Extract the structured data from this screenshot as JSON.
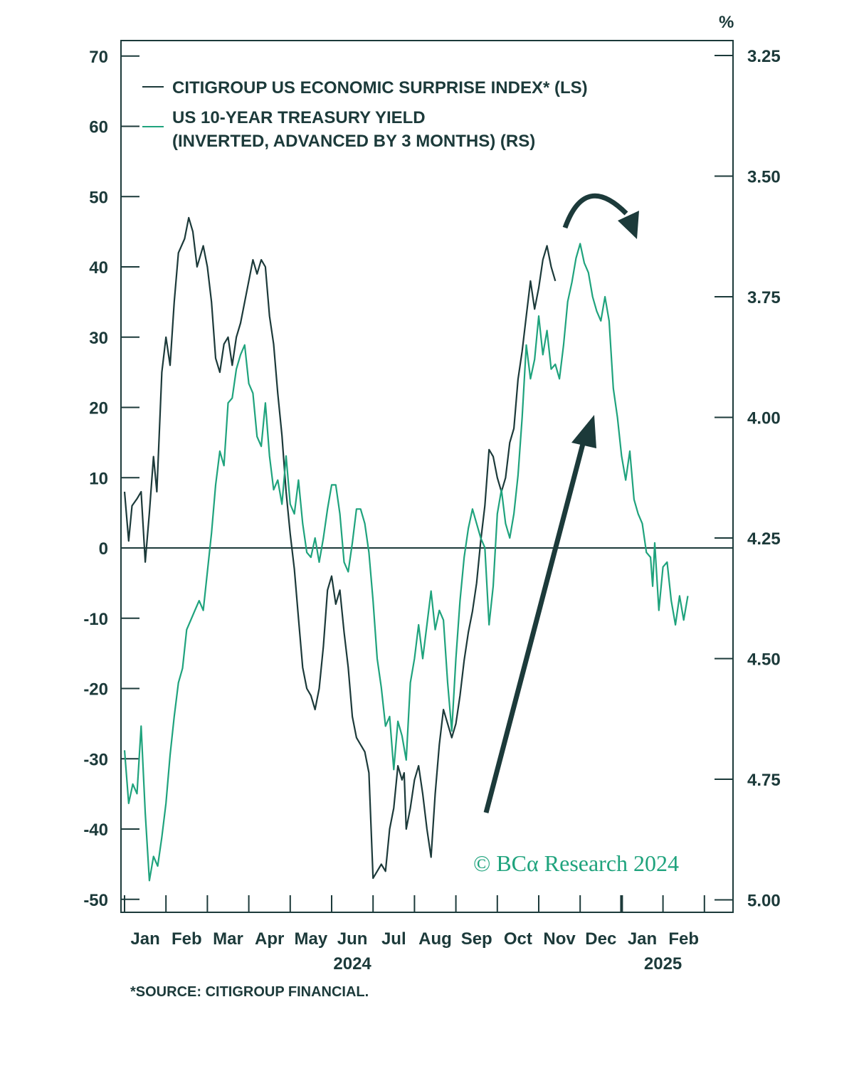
{
  "chart_data": {
    "type": "line",
    "unit_label": "%",
    "legend": [
      {
        "label": "CITIGROUP US ECONOMIC SURPRISE INDEX* (LS)",
        "color": "#1c3a3a"
      },
      {
        "label_line1": "US 10-YEAR TREASURY YIELD",
        "label_line2": "(INVERTED, ADVANCED BY 3 MONTHS) (RS)",
        "color": "#1fa37d"
      }
    ],
    "left_axis": {
      "ylim": [
        -50,
        70
      ],
      "ticks": [
        70,
        60,
        50,
        40,
        30,
        20,
        10,
        0,
        -10,
        -20,
        -30,
        -40,
        -50
      ]
    },
    "right_axis": {
      "ylim": [
        3.25,
        5.0
      ],
      "inverted": true,
      "ticks": [
        "3.25",
        "3.50",
        "3.75",
        "4.00",
        "4.25",
        "4.50",
        "4.75",
        "5.00"
      ]
    },
    "x_axis": {
      "months": [
        "Jan",
        "Feb",
        "Mar",
        "Apr",
        "May",
        "Jun",
        "Jul",
        "Aug",
        "Sep",
        "Oct",
        "Nov",
        "Dec",
        "Jan",
        "Feb"
      ],
      "year_labels": [
        {
          "text": "2024",
          "month_index": 5.5
        },
        {
          "text": "2025",
          "month_index": 13
        }
      ],
      "range": [
        0,
        14
      ]
    },
    "series": [
      {
        "name": "CITIGROUP US ECONOMIC SURPRISE INDEX* (LS)",
        "color": "#1c3a3a",
        "axis": "left",
        "points": [
          [
            0.0,
            8
          ],
          [
            0.1,
            1
          ],
          [
            0.18,
            6
          ],
          [
            0.3,
            7
          ],
          [
            0.4,
            8
          ],
          [
            0.5,
            -2
          ],
          [
            0.6,
            5
          ],
          [
            0.7,
            13
          ],
          [
            0.78,
            8
          ],
          [
            0.9,
            25
          ],
          [
            1.0,
            30
          ],
          [
            1.1,
            26
          ],
          [
            1.2,
            35
          ],
          [
            1.3,
            42
          ],
          [
            1.45,
            44
          ],
          [
            1.55,
            47
          ],
          [
            1.65,
            45
          ],
          [
            1.75,
            40
          ],
          [
            1.9,
            43
          ],
          [
            2.0,
            40
          ],
          [
            2.1,
            35
          ],
          [
            2.2,
            27
          ],
          [
            2.3,
            25
          ],
          [
            2.4,
            29
          ],
          [
            2.5,
            30
          ],
          [
            2.6,
            26
          ],
          [
            2.7,
            30
          ],
          [
            2.8,
            32
          ],
          [
            2.9,
            35
          ],
          [
            3.0,
            38
          ],
          [
            3.1,
            41
          ],
          [
            3.2,
            39
          ],
          [
            3.3,
            41
          ],
          [
            3.4,
            40
          ],
          [
            3.5,
            33
          ],
          [
            3.6,
            29
          ],
          [
            3.7,
            22
          ],
          [
            3.8,
            16
          ],
          [
            3.9,
            8
          ],
          [
            4.0,
            2
          ],
          [
            4.1,
            -3
          ],
          [
            4.2,
            -10
          ],
          [
            4.3,
            -17
          ],
          [
            4.4,
            -20
          ],
          [
            4.5,
            -21
          ],
          [
            4.6,
            -23
          ],
          [
            4.7,
            -20
          ],
          [
            4.8,
            -14
          ],
          [
            4.9,
            -6
          ],
          [
            5.0,
            -4
          ],
          [
            5.1,
            -8
          ],
          [
            5.2,
            -6
          ],
          [
            5.3,
            -12
          ],
          [
            5.4,
            -17
          ],
          [
            5.5,
            -24
          ],
          [
            5.6,
            -27
          ],
          [
            5.7,
            -28
          ],
          [
            5.8,
            -29
          ],
          [
            5.9,
            -32
          ],
          [
            6.0,
            -47
          ],
          [
            6.1,
            -46
          ],
          [
            6.2,
            -45
          ],
          [
            6.3,
            -46
          ],
          [
            6.4,
            -40
          ],
          [
            6.5,
            -37
          ],
          [
            6.6,
            -31
          ],
          [
            6.7,
            -33
          ],
          [
            6.75,
            -32
          ],
          [
            6.8,
            -40
          ],
          [
            6.9,
            -37
          ],
          [
            7.0,
            -33
          ],
          [
            7.1,
            -31
          ],
          [
            7.2,
            -35
          ],
          [
            7.3,
            -40
          ],
          [
            7.4,
            -44
          ],
          [
            7.5,
            -35
          ],
          [
            7.6,
            -28
          ],
          [
            7.7,
            -23
          ],
          [
            7.8,
            -25
          ],
          [
            7.9,
            -27
          ],
          [
            8.0,
            -25
          ],
          [
            8.1,
            -21
          ],
          [
            8.2,
            -16
          ],
          [
            8.3,
            -12
          ],
          [
            8.4,
            -9
          ],
          [
            8.5,
            -5
          ],
          [
            8.6,
            1
          ],
          [
            8.7,
            6
          ],
          [
            8.8,
            14
          ],
          [
            8.9,
            13
          ],
          [
            9.0,
            10
          ],
          [
            9.1,
            8
          ],
          [
            9.2,
            10
          ],
          [
            9.3,
            15
          ],
          [
            9.4,
            17
          ],
          [
            9.5,
            24
          ],
          [
            9.6,
            28
          ],
          [
            9.7,
            33
          ],
          [
            9.8,
            38
          ],
          [
            9.9,
            34
          ],
          [
            10.0,
            37
          ],
          [
            10.1,
            41
          ],
          [
            10.2,
            43
          ],
          [
            10.3,
            40
          ],
          [
            10.4,
            38
          ]
        ]
      },
      {
        "name": "US 10-YEAR TREASURY YIELD (INVERTED, ADVANCED BY 3 MONTHS) (RS)",
        "color": "#1fa37d",
        "axis": "right",
        "points": [
          [
            0.0,
            4.69
          ],
          [
            0.1,
            4.8
          ],
          [
            0.2,
            4.76
          ],
          [
            0.3,
            4.78
          ],
          [
            0.4,
            4.64
          ],
          [
            0.5,
            4.82
          ],
          [
            0.6,
            4.96
          ],
          [
            0.7,
            4.91
          ],
          [
            0.8,
            4.93
          ],
          [
            0.9,
            4.87
          ],
          [
            1.0,
            4.8
          ],
          [
            1.1,
            4.7
          ],
          [
            1.2,
            4.62
          ],
          [
            1.3,
            4.55
          ],
          [
            1.4,
            4.52
          ],
          [
            1.5,
            4.44
          ],
          [
            1.6,
            4.42
          ],
          [
            1.7,
            4.4
          ],
          [
            1.8,
            4.38
          ],
          [
            1.9,
            4.4
          ],
          [
            2.0,
            4.32
          ],
          [
            2.1,
            4.24
          ],
          [
            2.2,
            4.14
          ],
          [
            2.3,
            4.07
          ],
          [
            2.4,
            4.1
          ],
          [
            2.5,
            3.97
          ],
          [
            2.6,
            3.96
          ],
          [
            2.7,
            3.9
          ],
          [
            2.8,
            3.87
          ],
          [
            2.9,
            3.85
          ],
          [
            3.0,
            3.93
          ],
          [
            3.1,
            3.95
          ],
          [
            3.2,
            4.04
          ],
          [
            3.3,
            4.06
          ],
          [
            3.4,
            3.97
          ],
          [
            3.5,
            4.08
          ],
          [
            3.6,
            4.15
          ],
          [
            3.7,
            4.13
          ],
          [
            3.8,
            4.18
          ],
          [
            3.9,
            4.08
          ],
          [
            4.0,
            4.18
          ],
          [
            4.1,
            4.2
          ],
          [
            4.2,
            4.13
          ],
          [
            4.3,
            4.22
          ],
          [
            4.4,
            4.28
          ],
          [
            4.5,
            4.29
          ],
          [
            4.6,
            4.25
          ],
          [
            4.7,
            4.3
          ],
          [
            4.8,
            4.25
          ],
          [
            4.9,
            4.19
          ],
          [
            5.0,
            4.14
          ],
          [
            5.1,
            4.14
          ],
          [
            5.2,
            4.2
          ],
          [
            5.3,
            4.3
          ],
          [
            5.4,
            4.32
          ],
          [
            5.5,
            4.26
          ],
          [
            5.6,
            4.19
          ],
          [
            5.7,
            4.19
          ],
          [
            5.8,
            4.22
          ],
          [
            5.9,
            4.28
          ],
          [
            6.0,
            4.38
          ],
          [
            6.1,
            4.5
          ],
          [
            6.2,
            4.56
          ],
          [
            6.3,
            4.64
          ],
          [
            6.4,
            4.62
          ],
          [
            6.5,
            4.73
          ],
          [
            6.6,
            4.63
          ],
          [
            6.7,
            4.66
          ],
          [
            6.8,
            4.71
          ],
          [
            6.9,
            4.55
          ],
          [
            7.0,
            4.5
          ],
          [
            7.1,
            4.43
          ],
          [
            7.2,
            4.5
          ],
          [
            7.3,
            4.43
          ],
          [
            7.4,
            4.36
          ],
          [
            7.5,
            4.44
          ],
          [
            7.6,
            4.4
          ],
          [
            7.7,
            4.42
          ],
          [
            7.8,
            4.55
          ],
          [
            7.9,
            4.65
          ],
          [
            8.0,
            4.5
          ],
          [
            8.1,
            4.38
          ],
          [
            8.2,
            4.29
          ],
          [
            8.3,
            4.23
          ],
          [
            8.4,
            4.19
          ],
          [
            8.5,
            4.22
          ],
          [
            8.6,
            4.25
          ],
          [
            8.7,
            4.27
          ],
          [
            8.8,
            4.43
          ],
          [
            8.9,
            4.35
          ],
          [
            9.0,
            4.2
          ],
          [
            9.1,
            4.15
          ],
          [
            9.2,
            4.22
          ],
          [
            9.3,
            4.25
          ],
          [
            9.4,
            4.2
          ],
          [
            9.5,
            4.12
          ],
          [
            9.6,
            4.0
          ],
          [
            9.7,
            3.85
          ],
          [
            9.8,
            3.92
          ],
          [
            9.9,
            3.88
          ],
          [
            10.0,
            3.79
          ],
          [
            10.1,
            3.87
          ],
          [
            10.2,
            3.82
          ],
          [
            10.3,
            3.9
          ],
          [
            10.4,
            3.89
          ],
          [
            10.5,
            3.92
          ],
          [
            10.6,
            3.85
          ],
          [
            10.7,
            3.76
          ],
          [
            10.8,
            3.72
          ],
          [
            10.9,
            3.67
          ],
          [
            11.0,
            3.64
          ],
          [
            11.1,
            3.68
          ],
          [
            11.2,
            3.7
          ],
          [
            11.3,
            3.75
          ],
          [
            11.4,
            3.78
          ],
          [
            11.5,
            3.8
          ],
          [
            11.6,
            3.75
          ],
          [
            11.7,
            3.8
          ],
          [
            11.8,
            3.94
          ],
          [
            11.9,
            4.0
          ],
          [
            12.0,
            4.08
          ],
          [
            12.1,
            4.13
          ],
          [
            12.2,
            4.07
          ],
          [
            12.3,
            4.17
          ],
          [
            12.4,
            4.2
          ],
          [
            12.5,
            4.22
          ],
          [
            12.6,
            4.28
          ],
          [
            12.7,
            4.29
          ],
          [
            12.75,
            4.35
          ],
          [
            12.8,
            4.26
          ],
          [
            12.9,
            4.4
          ],
          [
            13.0,
            4.31
          ],
          [
            13.1,
            4.3
          ],
          [
            13.2,
            4.38
          ],
          [
            13.3,
            4.43
          ],
          [
            13.4,
            4.37
          ],
          [
            13.5,
            4.42
          ],
          [
            13.6,
            4.37
          ]
        ]
      }
    ],
    "zero_line": 0,
    "annotations": [
      "rising arrow (trend up)",
      "curved arrow (turning down)"
    ],
    "watermark": "© BCα Research 2024",
    "footnote": "*SOURCE: CITIGROUP FINANCIAL."
  }
}
